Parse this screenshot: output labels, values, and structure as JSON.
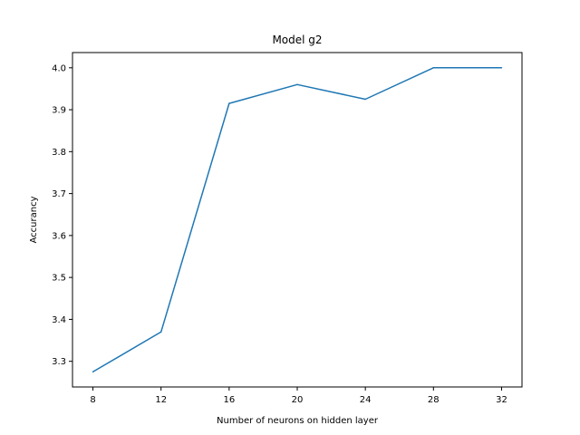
{
  "chart_data": {
    "type": "line",
    "title": "Model g2",
    "xlabel": "Number of neurons on hidden layer",
    "ylabel": "Accurancy",
    "x": [
      8,
      12,
      16,
      20,
      24,
      28,
      32
    ],
    "series": [
      {
        "values": [
          3.275,
          3.37,
          3.915,
          3.96,
          3.925,
          4.0,
          4.0
        ],
        "color": "#1f77b4"
      }
    ],
    "xticks": [
      "8",
      "12",
      "16",
      "20",
      "24",
      "28",
      "32"
    ],
    "yticks": [
      "3.3",
      "3.4",
      "3.5",
      "3.6",
      "3.7",
      "3.8",
      "3.9",
      "4.0"
    ],
    "xlim": [
      6.8,
      33.2
    ],
    "ylim": [
      3.2388,
      4.0363
    ],
    "grid": false
  }
}
